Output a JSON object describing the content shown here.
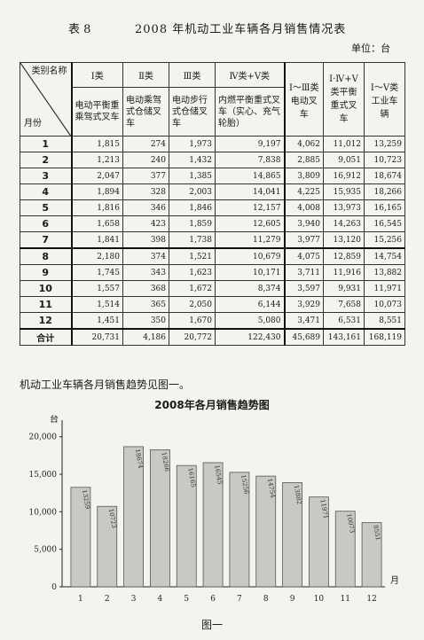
{
  "header": {
    "table_no": "表 8",
    "title": "2008 年机动工业车辆各月销售情况表",
    "unit": "单位：台"
  },
  "table": {
    "corner_top": "类别名称",
    "corner_bottom": "月份",
    "columns": [
      {
        "cat": "Ⅰ类",
        "desc": "电动平衡重乘驾式叉车"
      },
      {
        "cat": "Ⅱ类",
        "desc": "电动乘驾式仓储叉车"
      },
      {
        "cat": "Ⅲ类",
        "desc": "电动步行式仓储叉车"
      },
      {
        "cat": "Ⅳ类+Ⅴ类",
        "desc": "内燃平衡重式叉车（实心、充气轮胎）"
      },
      {
        "cat": "Ⅰ～Ⅲ类电动叉车",
        "desc": ""
      },
      {
        "cat": "Ⅰ·Ⅳ+Ⅴ类平衡重式叉车",
        "desc": ""
      },
      {
        "cat": "Ⅰ～Ⅴ类工业车辆",
        "desc": ""
      }
    ],
    "rows": [
      {
        "m": "1",
        "v": [
          "1,815",
          "274",
          "1,973",
          "9,197",
          "4,062",
          "11,012",
          "13,259"
        ]
      },
      {
        "m": "2",
        "v": [
          "1,213",
          "240",
          "1,432",
          "7,838",
          "2,885",
          "9,051",
          "10,723"
        ]
      },
      {
        "m": "3",
        "v": [
          "2,047",
          "377",
          "1,385",
          "14,865",
          "3,809",
          "16,912",
          "18,674"
        ]
      },
      {
        "m": "4",
        "v": [
          "1,894",
          "328",
          "2,003",
          "14,041",
          "4,225",
          "15,935",
          "18,266"
        ]
      },
      {
        "m": "5",
        "v": [
          "1,816",
          "346",
          "1,846",
          "12,157",
          "4,008",
          "13,973",
          "16,165"
        ]
      },
      {
        "m": "6",
        "v": [
          "1,658",
          "423",
          "1,859",
          "12,605",
          "3,940",
          "14,263",
          "16,545"
        ]
      },
      {
        "m": "7",
        "v": [
          "1,841",
          "398",
          "1,738",
          "11,279",
          "3,977",
          "13,120",
          "15,256"
        ]
      },
      {
        "m": "8",
        "v": [
          "2,180",
          "374",
          "1,521",
          "10,679",
          "4,075",
          "12,859",
          "14,754"
        ]
      },
      {
        "m": "9",
        "v": [
          "1,745",
          "343",
          "1,623",
          "10,171",
          "3,711",
          "11,916",
          "13,882"
        ]
      },
      {
        "m": "10",
        "v": [
          "1,557",
          "368",
          "1,672",
          "8,374",
          "3,597",
          "9,931",
          "11,971"
        ]
      },
      {
        "m": "11",
        "v": [
          "1,514",
          "365",
          "2,050",
          "6,144",
          "3,929",
          "7,658",
          "10,073"
        ]
      },
      {
        "m": "12",
        "v": [
          "1,451",
          "350",
          "1,670",
          "5,080",
          "3,471",
          "6,531",
          "8,551"
        ]
      }
    ],
    "total": {
      "m": "合计",
      "v": [
        "20,731",
        "4,186",
        "20,772",
        "122,430",
        "45,689",
        "143,161",
        "168,119"
      ]
    }
  },
  "note": "机动工业车辆各月销售趋势见图一。",
  "figure_caption": "图一",
  "chart_data": {
    "type": "bar",
    "title": "2008年各月销售趋势图",
    "ylabel": "台",
    "xlabel": "月",
    "categories": [
      "1",
      "2",
      "3",
      "4",
      "5",
      "6",
      "7",
      "8",
      "9",
      "10",
      "11",
      "12"
    ],
    "values": [
      13259,
      10723,
      18674,
      18266,
      16165,
      16545,
      15256,
      14754,
      13882,
      11971,
      10073,
      8551
    ],
    "data_labels": [
      "13259",
      "10723",
      "18674",
      "18266",
      "16165",
      "16545",
      "15256",
      "14754",
      "13882",
      "11971",
      "10073",
      "8551"
    ],
    "yticks": [
      0,
      5000,
      10000,
      15000,
      20000
    ],
    "ytick_labels": [
      "0",
      "5,000",
      "10,000",
      "15,000",
      "20,000"
    ],
    "ylim": [
      0,
      21500
    ],
    "grid": false,
    "bar_color": "#c9c9c4"
  }
}
